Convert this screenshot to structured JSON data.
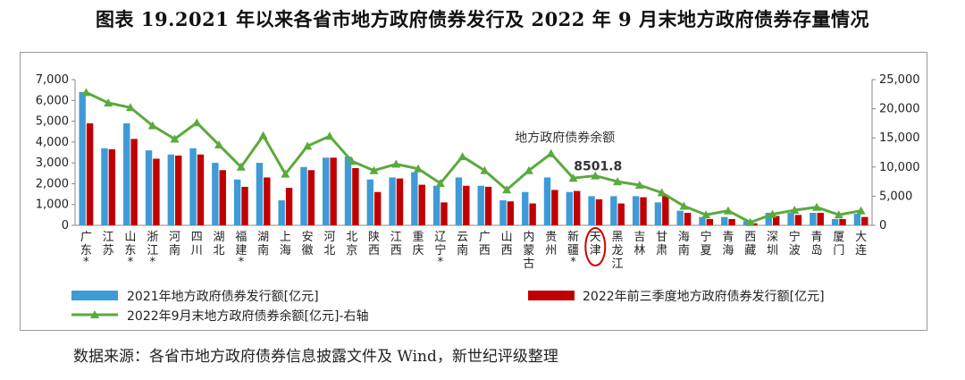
{
  "title": "图表 19.2021 年以来各省市地方政府债券发行及 2022 年 9 月末地方政府债券存量情况",
  "source": "数据来源：各省市地方政府债券信息披露文件及 Wind，新世纪评级整理",
  "chart_data": {
    "type": "bar+line",
    "categories": [
      "广东",
      "江苏",
      "山东",
      "浙江",
      "河南",
      "四川",
      "湖北",
      "福建",
      "湖南",
      "上海",
      "安徽",
      "河北",
      "北京",
      "陕西",
      "江西",
      "重庆",
      "辽宁",
      "云南",
      "广西",
      "山西",
      "内蒙古",
      "贵州",
      "新疆",
      "天津",
      "黑龙江",
      "吉林",
      "甘肃",
      "海南",
      "宁夏",
      "青海",
      "西藏",
      "深圳",
      "宁波",
      "青岛",
      "厦门",
      "大连"
    ],
    "starred": [
      "广东",
      "山东",
      "浙江",
      "福建",
      "辽宁",
      "新疆"
    ],
    "highlighted": "天津",
    "left_axis": {
      "ylim": [
        0,
        7000
      ],
      "ticks": [
        "0",
        "1,000",
        "2,000",
        "3,000",
        "4,000",
        "5,000",
        "6,000",
        "7,000"
      ]
    },
    "right_axis": {
      "ylim": [
        0,
        25000
      ],
      "ticks": [
        "0",
        "5,000",
        "10,000",
        "15,000",
        "20,000",
        "25,000"
      ]
    },
    "series": [
      {
        "name": "2021年地方政府债券发行额[亿元]",
        "type": "bar",
        "axis": "left",
        "color": "#3f9ad8",
        "values": [
          6400,
          3700,
          4900,
          3600,
          3400,
          3700,
          3000,
          2200,
          3000,
          1200,
          2800,
          3250,
          3300,
          2200,
          2300,
          2550,
          1900,
          2300,
          1900,
          1200,
          1600,
          2300,
          1600,
          1400,
          1400,
          1400,
          1100,
          700,
          400,
          400,
          200,
          600,
          600,
          600,
          300,
          550
        ]
      },
      {
        "name": "2022年前三季度地方政府债券发行额[亿元]",
        "type": "bar",
        "axis": "left",
        "color": "#c00000",
        "values": [
          4900,
          3650,
          4150,
          3200,
          3350,
          3400,
          2650,
          1850,
          2300,
          1800,
          2650,
          3250,
          2750,
          1600,
          2250,
          1950,
          1100,
          1900,
          1850,
          1150,
          1050,
          1700,
          1650,
          1250,
          1050,
          1350,
          1450,
          600,
          300,
          300,
          100,
          450,
          500,
          600,
          300,
          400
        ]
      },
      {
        "name": "2022年9月末地方政府债券余额[亿元]-右轴",
        "type": "line",
        "axis": "right",
        "color": "#5aaa3c",
        "values": [
          22800,
          21000,
          20200,
          17100,
          14800,
          17600,
          13800,
          10000,
          15400,
          8800,
          13600,
          15300,
          11000,
          9400,
          10500,
          9700,
          7200,
          11800,
          9400,
          6100,
          9400,
          12300,
          8100,
          8501.8,
          7500,
          6900,
          5600,
          3300,
          1800,
          2500,
          500,
          1900,
          2600,
          3100,
          1800,
          2500
        ]
      }
    ],
    "annotation": {
      "label": "地方政府债券余额",
      "value_label": "8501.8"
    }
  }
}
